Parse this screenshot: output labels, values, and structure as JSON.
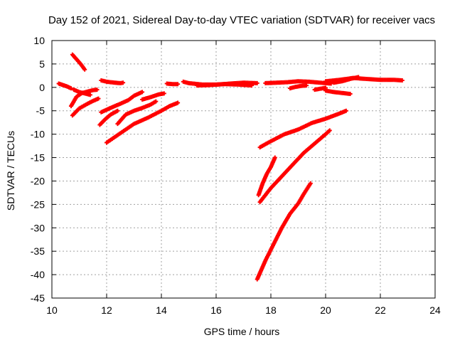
{
  "chart_data": {
    "type": "scatter",
    "title": "Day 152 of 2021, Sidereal Day-to-day VTEC variation (SDTVAR) for receiver vacs",
    "xlabel": "GPS time / hours",
    "ylabel": "SDTVAR / TECUs",
    "xlim": [
      10,
      24
    ],
    "ylim": [
      -45,
      10
    ],
    "xticks": [
      10,
      12,
      14,
      16,
      18,
      20,
      22,
      24
    ],
    "yticks": [
      10,
      5,
      0,
      -5,
      -10,
      -15,
      -20,
      -25,
      -30,
      -35,
      -40,
      -45
    ],
    "grid": true,
    "legend": false,
    "series_color": "#ff0000",
    "marker": "plus",
    "series": [
      {
        "x": [
          10.25,
          10.4,
          10.55,
          10.7
        ],
        "y": [
          0.8,
          0.5,
          0.2,
          -0.2
        ]
      },
      {
        "x": [
          10.75,
          10.9,
          11.05,
          11.2
        ],
        "y": [
          7.0,
          6.0,
          5.0,
          3.8
        ]
      },
      {
        "x": [
          10.7,
          10.9,
          11.1,
          11.3,
          11.5,
          11.65
        ],
        "y": [
          -4.0,
          -2.0,
          -1.2,
          -0.9,
          -0.6,
          -0.5
        ]
      },
      {
        "x": [
          10.75,
          11.0,
          11.3,
          11.5,
          11.7
        ],
        "y": [
          -6.0,
          -4.5,
          -3.5,
          -2.9,
          -2.4
        ]
      },
      {
        "x": [
          10.8,
          11.0,
          11.2,
          11.4
        ],
        "y": [
          -0.5,
          -1.0,
          -1.3,
          -1.6
        ]
      },
      {
        "x": [
          11.8,
          12.0,
          12.3,
          12.5,
          12.6
        ],
        "y": [
          1.5,
          1.2,
          1.0,
          0.9,
          1.0
        ]
      },
      {
        "x": [
          11.8,
          12.1,
          12.5,
          12.8,
          13.0,
          13.3
        ],
        "y": [
          -5.3,
          -4.5,
          -3.5,
          -2.7,
          -1.8,
          -1.0
        ]
      },
      {
        "x": [
          11.75,
          11.95,
          12.15,
          12.4
        ],
        "y": [
          -8.0,
          -6.8,
          -5.8,
          -5.0
        ]
      },
      {
        "x": [
          12.4,
          12.7,
          13.0,
          13.3,
          13.6,
          13.8
        ],
        "y": [
          -7.8,
          -5.8,
          -5.0,
          -4.4,
          -3.7,
          -3.0
        ]
      },
      {
        "x": [
          12.0,
          12.5,
          13.0,
          13.5,
          14.0,
          14.3,
          14.6
        ],
        "y": [
          -11.8,
          -9.8,
          -7.8,
          -6.5,
          -5.0,
          -4.0,
          -3.3
        ]
      },
      {
        "x": [
          13.3,
          13.6,
          13.9,
          14.1
        ],
        "y": [
          -2.6,
          -2.1,
          -1.5,
          -1.3
        ]
      },
      {
        "x": [
          14.2,
          14.4,
          14.6
        ],
        "y": [
          0.8,
          0.7,
          0.7
        ]
      },
      {
        "x": [
          14.8,
          15.0,
          15.5,
          16.0,
          16.5,
          17.0,
          17.5
        ],
        "y": [
          1.2,
          0.9,
          0.6,
          0.6,
          0.8,
          1.0,
          0.9
        ]
      },
      {
        "x": [
          15.3,
          15.8,
          16.3,
          16.8,
          17.3
        ],
        "y": [
          0.4,
          0.5,
          0.7,
          0.6,
          0.4
        ]
      },
      {
        "x": [
          17.8,
          18.2,
          18.6,
          19.0,
          19.4,
          19.8,
          20.2
        ],
        "y": [
          0.9,
          1.0,
          1.1,
          1.3,
          1.2,
          1.0,
          0.8
        ]
      },
      {
        "x": [
          18.7,
          18.9,
          19.1,
          19.3
        ],
        "y": [
          -0.2,
          0.1,
          0.3,
          0.4
        ]
      },
      {
        "x": [
          19.6,
          19.8,
          20.0
        ],
        "y": [
          -0.5,
          -0.3,
          -0.1
        ]
      },
      {
        "x": [
          20.0,
          20.5,
          21.0,
          21.5,
          22.0,
          22.5,
          22.8
        ],
        "y": [
          1.3,
          1.6,
          2.0,
          1.8,
          1.6,
          1.6,
          1.5
        ]
      },
      {
        "x": [
          20.3,
          20.6,
          20.9,
          21.2
        ],
        "y": [
          1.0,
          1.3,
          1.8,
          2.2
        ]
      },
      {
        "x": [
          20.0,
          20.3,
          20.6,
          20.9
        ],
        "y": [
          -0.7,
          -1.0,
          -1.2,
          -1.4
        ]
      },
      {
        "x": [
          17.6,
          18.0,
          18.5,
          19.0,
          19.5,
          20.0,
          20.5,
          20.75
        ],
        "y": [
          -12.8,
          -11.5,
          -10.0,
          -9.0,
          -7.6,
          -6.7,
          -5.6,
          -5.0
        ]
      },
      {
        "x": [
          17.55,
          17.7,
          17.85,
          18.0,
          18.15
        ],
        "y": [
          -23.0,
          -20.5,
          -18.5,
          -17.0,
          -15.0
        ]
      },
      {
        "x": [
          17.6,
          18.0,
          18.4,
          18.8,
          19.2,
          19.6,
          20.0,
          20.15
        ],
        "y": [
          -24.5,
          -21.5,
          -19.0,
          -16.5,
          -14.0,
          -12.0,
          -10.0,
          -9.2
        ]
      },
      {
        "x": [
          17.5,
          17.8,
          18.1,
          18.4,
          18.7,
          19.0,
          19.2,
          19.45
        ],
        "y": [
          -41.0,
          -37.0,
          -33.5,
          -30.0,
          -27.0,
          -24.8,
          -22.8,
          -20.5
        ]
      }
    ]
  }
}
